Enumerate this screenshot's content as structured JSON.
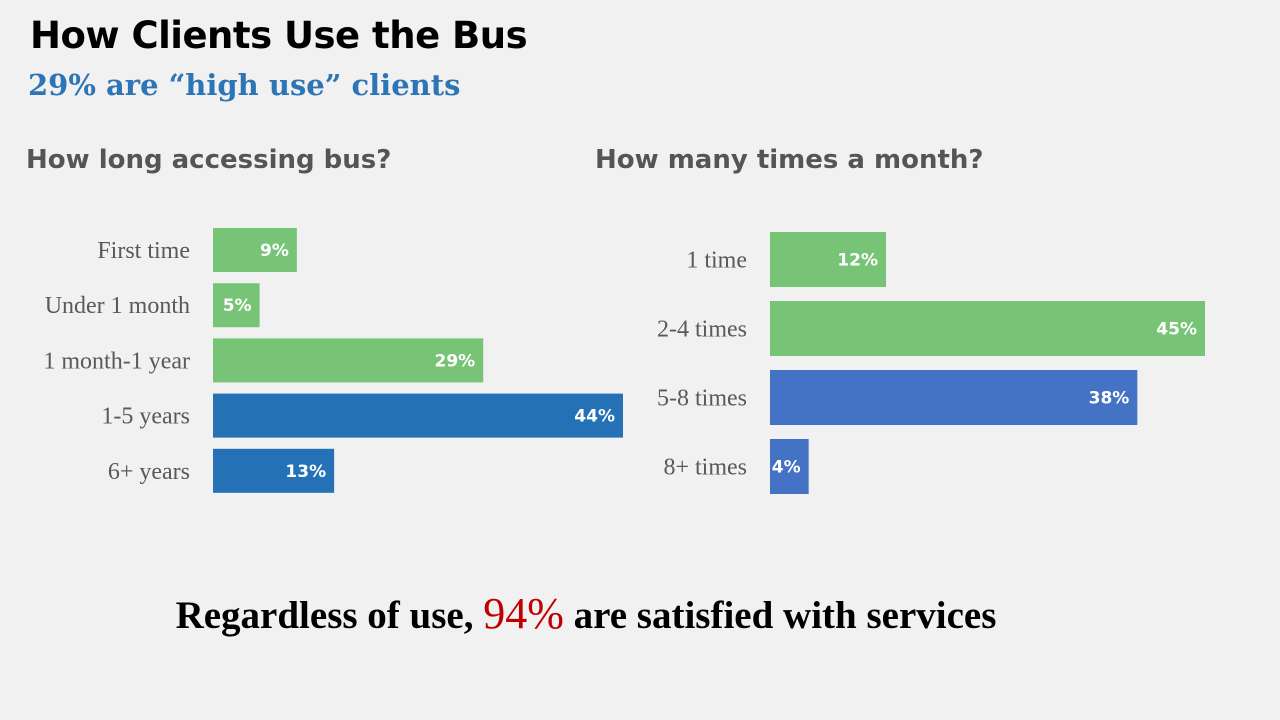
{
  "slide": {
    "title": "How Clients Use the Bus",
    "subtitle": "29% are “high use” clients",
    "footer_before": "Regardless of  use, ",
    "footer_highlight": "94%",
    "footer_after": " are satisfied with services",
    "highlight_color": "#c00000",
    "subtitle_color": "#2e75b6"
  },
  "chart_data": [
    {
      "type": "bar",
      "orientation": "horizontal",
      "title": "How long accessing bus?",
      "categories": [
        "First time",
        "Under 1 month",
        "1 month-1 year",
        "1-5 years",
        "6+ years"
      ],
      "values": [
        9,
        5,
        29,
        44,
        13
      ],
      "labels": [
        "9%",
        "5%",
        "29%",
        "44%",
        "13%"
      ],
      "colors": [
        "#77c477",
        "#77c477",
        "#77c477",
        "#2471b5",
        "#2471b5"
      ],
      "unit": "%",
      "xlim": [
        0,
        44
      ],
      "grid": false,
      "legend": "none"
    },
    {
      "type": "bar",
      "orientation": "horizontal",
      "title": "How many times a month?",
      "categories": [
        "1 time",
        "2-4 times",
        "5-8 times",
        "8+ times"
      ],
      "values": [
        12,
        45,
        38,
        4
      ],
      "labels": [
        "12%",
        "45%",
        "38%",
        "4%"
      ],
      "colors": [
        "#77c477",
        "#77c477",
        "#4472c4",
        "#4472c4"
      ],
      "unit": "%",
      "xlim": [
        0,
        45
      ],
      "grid": false,
      "legend": "none"
    }
  ]
}
